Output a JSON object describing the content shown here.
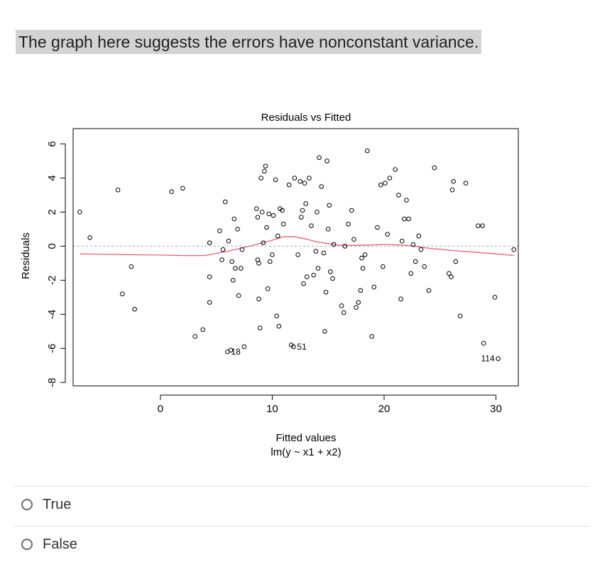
{
  "question": {
    "text": "The graph here suggests the errors have nonconstant variance."
  },
  "options": [
    {
      "label": "True",
      "selected": false
    },
    {
      "label": "False",
      "selected": false
    }
  ],
  "colors": {
    "highlight": "#d3d3d3",
    "smoother": "#e8607a",
    "zero_line": "#aaaaaa"
  },
  "chart_data": {
    "type": "scatter",
    "title": "Residuals vs Fitted",
    "xlabel": "Fitted values",
    "xlabel2": "lm(y ~ x1 + x2)",
    "ylabel": "Residuals",
    "xlim": [
      -7.8,
      32
    ],
    "ylim": [
      -8.2,
      6.9
    ],
    "x_ticks": [
      0,
      10,
      20,
      30
    ],
    "x_tick_labels": [
      "0",
      "10",
      "20",
      "30"
    ],
    "y_ticks": [
      -8,
      -6,
      -4,
      -2,
      0,
      2,
      4,
      6
    ],
    "y_tick_labels": [
      "-8",
      "-6",
      "-4",
      "-2",
      "0",
      "2",
      "4",
      "6"
    ],
    "reference_line_y": 0,
    "points": [
      {
        "x": -7.2,
        "y": 2.0
      },
      {
        "x": -6.3,
        "y": 0.5
      },
      {
        "x": -3.8,
        "y": 3.3
      },
      {
        "x": -3.4,
        "y": -2.8
      },
      {
        "x": -2.6,
        "y": -1.2
      },
      {
        "x": -2.3,
        "y": -3.7
      },
      {
        "x": 1.0,
        "y": 3.2
      },
      {
        "x": 2.0,
        "y": 3.4
      },
      {
        "x": 3.1,
        "y": -5.3
      },
      {
        "x": 3.8,
        "y": -4.9
      },
      {
        "x": 4.4,
        "y": 0.2
      },
      {
        "x": 4.4,
        "y": -1.8
      },
      {
        "x": 4.4,
        "y": -3.3
      },
      {
        "x": 5.3,
        "y": 0.9
      },
      {
        "x": 5.5,
        "y": -0.8
      },
      {
        "x": 5.6,
        "y": -0.2
      },
      {
        "x": 5.8,
        "y": 2.6
      },
      {
        "x": 6.1,
        "y": 0.3
      },
      {
        "x": 6.3,
        "y": -6.1
      },
      {
        "x": 6.4,
        "y": -0.9
      },
      {
        "x": 6.5,
        "y": -2.0
      },
      {
        "x": 6.6,
        "y": 1.6
      },
      {
        "x": 6.7,
        "y": -1.3
      },
      {
        "x": 6.9,
        "y": 1.0
      },
      {
        "x": 7.0,
        "y": -2.9
      },
      {
        "x": 7.2,
        "y": -1.3
      },
      {
        "x": 7.3,
        "y": -0.2
      },
      {
        "x": 7.5,
        "y": -5.9
      },
      {
        "x": 8.6,
        "y": 2.2
      },
      {
        "x": 8.7,
        "y": 1.7
      },
      {
        "x": 8.7,
        "y": -0.8
      },
      {
        "x": 8.8,
        "y": -1.0
      },
      {
        "x": 8.8,
        "y": -3.1
      },
      {
        "x": 8.9,
        "y": -4.8
      },
      {
        "x": 9.0,
        "y": 4.0
      },
      {
        "x": 9.1,
        "y": 2.0
      },
      {
        "x": 9.2,
        "y": 0.2
      },
      {
        "x": 9.3,
        "y": 4.4
      },
      {
        "x": 9.4,
        "y": 4.7
      },
      {
        "x": 9.5,
        "y": 1.1
      },
      {
        "x": 9.6,
        "y": -2.5
      },
      {
        "x": 9.7,
        "y": 1.9
      },
      {
        "x": 9.8,
        "y": -0.9
      },
      {
        "x": 10.0,
        "y": -0.5
      },
      {
        "x": 10.1,
        "y": 1.8
      },
      {
        "x": 10.3,
        "y": 3.9
      },
      {
        "x": 10.4,
        "y": -4.1
      },
      {
        "x": 10.5,
        "y": 0.6
      },
      {
        "x": 10.6,
        "y": -4.7
      },
      {
        "x": 10.7,
        "y": 2.2
      },
      {
        "x": 10.9,
        "y": 2.1
      },
      {
        "x": 11.0,
        "y": 1.3
      },
      {
        "x": 11.5,
        "y": 3.6
      },
      {
        "x": 11.7,
        "y": -5.8
      },
      {
        "x": 12.0,
        "y": 4.0
      },
      {
        "x": 12.3,
        "y": -0.5
      },
      {
        "x": 12.5,
        "y": 3.8
      },
      {
        "x": 12.6,
        "y": 1.7
      },
      {
        "x": 12.7,
        "y": 2.1
      },
      {
        "x": 12.8,
        "y": -2.2
      },
      {
        "x": 12.9,
        "y": 3.7
      },
      {
        "x": 13.0,
        "y": 2.5
      },
      {
        "x": 13.1,
        "y": -1.8
      },
      {
        "x": 13.3,
        "y": 4.0
      },
      {
        "x": 13.5,
        "y": 1.2
      },
      {
        "x": 13.7,
        "y": -1.7
      },
      {
        "x": 13.9,
        "y": -0.3
      },
      {
        "x": 14.0,
        "y": 2.0
      },
      {
        "x": 14.1,
        "y": -1.3
      },
      {
        "x": 14.2,
        "y": 5.2
      },
      {
        "x": 14.4,
        "y": 3.5
      },
      {
        "x": 14.6,
        "y": -0.4
      },
      {
        "x": 14.7,
        "y": -5.0
      },
      {
        "x": 14.8,
        "y": -2.7
      },
      {
        "x": 14.9,
        "y": 5.0
      },
      {
        "x": 15.0,
        "y": 1.0
      },
      {
        "x": 15.1,
        "y": 2.4
      },
      {
        "x": 15.2,
        "y": -1.5
      },
      {
        "x": 15.4,
        "y": -1.9
      },
      {
        "x": 15.5,
        "y": 0.1
      },
      {
        "x": 16.2,
        "y": -3.5
      },
      {
        "x": 16.4,
        "y": -3.9
      },
      {
        "x": 16.5,
        "y": 0.0
      },
      {
        "x": 16.8,
        "y": 1.3
      },
      {
        "x": 17.1,
        "y": 2.1
      },
      {
        "x": 17.3,
        "y": 0.4
      },
      {
        "x": 17.5,
        "y": -3.6
      },
      {
        "x": 17.7,
        "y": -3.3
      },
      {
        "x": 17.9,
        "y": -2.6
      },
      {
        "x": 18.0,
        "y": -0.7
      },
      {
        "x": 18.1,
        "y": -1.3
      },
      {
        "x": 18.3,
        "y": -0.5
      },
      {
        "x": 18.5,
        "y": 5.6
      },
      {
        "x": 18.9,
        "y": -5.3
      },
      {
        "x": 19.1,
        "y": -2.4
      },
      {
        "x": 19.4,
        "y": 1.1
      },
      {
        "x": 19.7,
        "y": 3.6
      },
      {
        "x": 19.9,
        "y": -1.2
      },
      {
        "x": 20.1,
        "y": 3.7
      },
      {
        "x": 20.3,
        "y": 0.7
      },
      {
        "x": 20.5,
        "y": 4.0
      },
      {
        "x": 21.0,
        "y": 4.5
      },
      {
        "x": 21.3,
        "y": 3.0
      },
      {
        "x": 21.5,
        "y": -3.1
      },
      {
        "x": 21.6,
        "y": 0.3
      },
      {
        "x": 21.8,
        "y": 1.6
      },
      {
        "x": 22.0,
        "y": 2.7
      },
      {
        "x": 22.2,
        "y": 1.6
      },
      {
        "x": 22.4,
        "y": -1.6
      },
      {
        "x": 22.6,
        "y": 0.1
      },
      {
        "x": 22.8,
        "y": -0.9
      },
      {
        "x": 23.1,
        "y": 0.6
      },
      {
        "x": 23.3,
        "y": -0.2
      },
      {
        "x": 23.6,
        "y": -1.2
      },
      {
        "x": 24.0,
        "y": -2.6
      },
      {
        "x": 24.5,
        "y": 4.6
      },
      {
        "x": 25.8,
        "y": -1.6
      },
      {
        "x": 26.0,
        "y": -1.8
      },
      {
        "x": 26.1,
        "y": 3.3
      },
      {
        "x": 26.2,
        "y": 3.8
      },
      {
        "x": 26.4,
        "y": -0.9
      },
      {
        "x": 26.8,
        "y": -4.1
      },
      {
        "x": 27.3,
        "y": 3.7
      },
      {
        "x": 28.4,
        "y": 1.2
      },
      {
        "x": 28.8,
        "y": 1.2
      },
      {
        "x": 28.9,
        "y": -5.7
      },
      {
        "x": 29.9,
        "y": -3.0
      },
      {
        "x": 31.6,
        "y": -0.2
      },
      {
        "x": 6.0,
        "y": -6.2
      },
      {
        "x": 11.9,
        "y": -5.9
      },
      {
        "x": 30.2,
        "y": -6.6
      }
    ],
    "point_labels": [
      {
        "text": "18",
        "x": 6.0,
        "y": -6.2
      },
      {
        "text": "51",
        "x": 11.9,
        "y": -5.9
      },
      {
        "text": "114",
        "x": 30.2,
        "y": -6.6
      }
    ],
    "smoother": {
      "name": "",
      "x": [
        -7.2,
        -3,
        0,
        2,
        4,
        6,
        8,
        10,
        11,
        12,
        13,
        14,
        16,
        18,
        20,
        22,
        24,
        26,
        28,
        30,
        31.6
      ],
      "y": [
        -0.45,
        -0.5,
        -0.52,
        -0.55,
        -0.55,
        -0.3,
        0.0,
        0.35,
        0.55,
        0.55,
        0.42,
        0.25,
        0.05,
        0.05,
        0.1,
        0.05,
        -0.12,
        -0.25,
        -0.35,
        -0.45,
        -0.55
      ]
    }
  }
}
